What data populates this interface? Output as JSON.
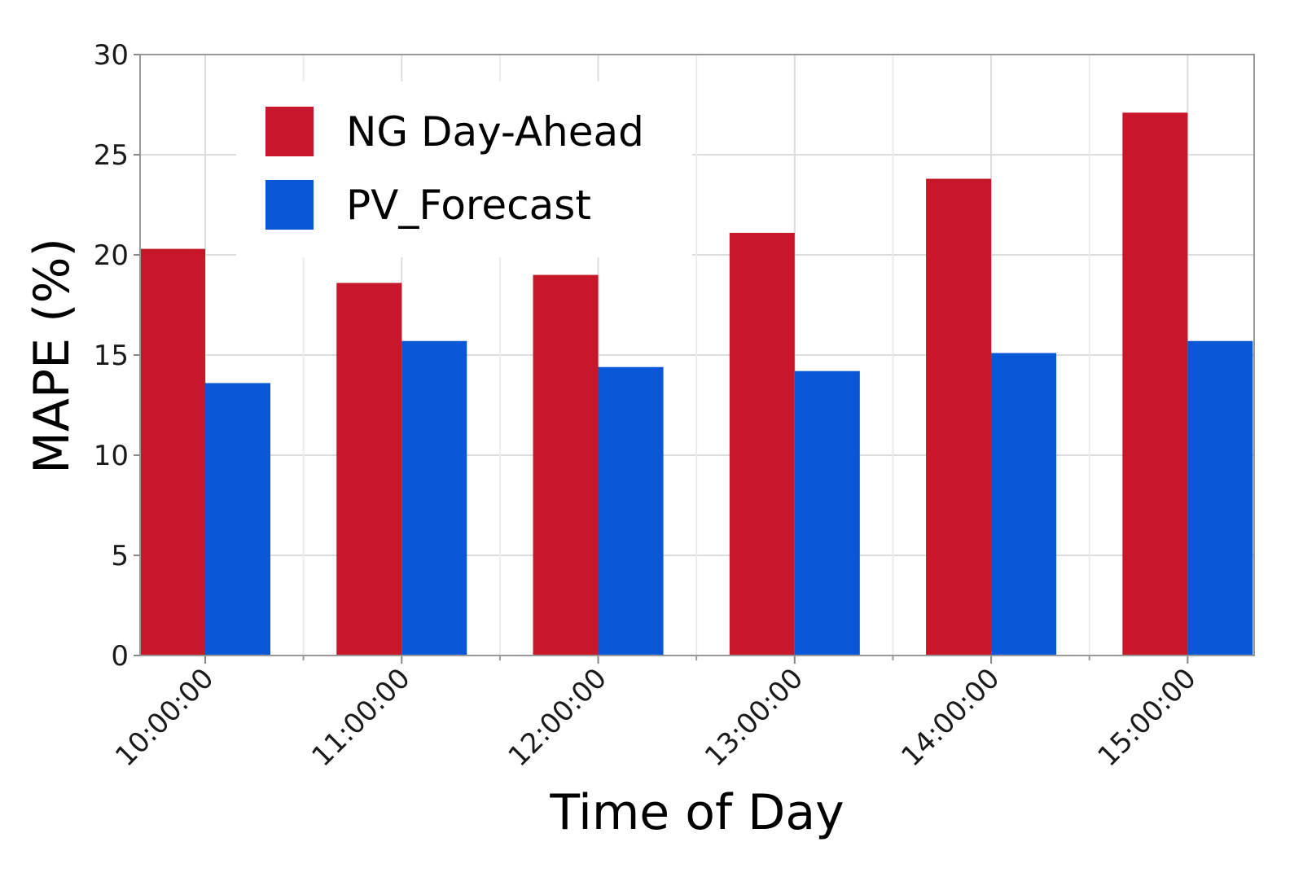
{
  "chart_data": {
    "type": "bar",
    "title": "",
    "xlabel": "Time of Day",
    "ylabel": "MAPE (%)",
    "ylim": [
      0,
      30
    ],
    "yticks": [
      0,
      5,
      10,
      15,
      20,
      25,
      30
    ],
    "grid": true,
    "legend_position": "top-left",
    "categories": [
      "10:00:00",
      "11:00:00",
      "12:00:00",
      "13:00:00",
      "14:00:00",
      "15:00:00"
    ],
    "series": [
      {
        "name": "NG Day-Ahead",
        "color": "#C8172A",
        "values": [
          20.3,
          18.6,
          19.0,
          21.1,
          23.8,
          27.1
        ]
      },
      {
        "name": "PV_Forecast",
        "color": "#0757D6",
        "values": [
          13.6,
          15.7,
          14.4,
          14.2,
          15.1,
          15.7
        ]
      }
    ]
  }
}
